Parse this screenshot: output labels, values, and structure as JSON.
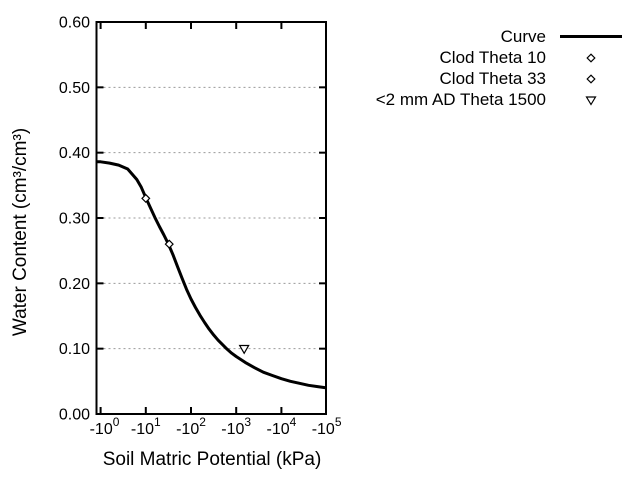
{
  "chart_data": {
    "type": "line",
    "title": "",
    "xlabel": "Soil Matric Potential (kPa)",
    "ylabel": "Water Content (cm³/cm³)",
    "background": "#ffffff",
    "axis_color": "#000000",
    "grid_color": "#999999",
    "x_axis": {
      "scale": "log10-of-negative-kPa",
      "tick_base": "-10",
      "tick_exponents": [
        "0",
        "1",
        "2",
        "3",
        "4",
        "5"
      ],
      "range_log10": [
        0,
        5
      ],
      "grid": false
    },
    "y_axis": {
      "tick_labels": [
        "0.00",
        "0.10",
        "0.20",
        "0.30",
        "0.40",
        "0.50",
        "0.60"
      ],
      "tick_values": [
        0.0,
        0.1,
        0.2,
        0.3,
        0.4,
        0.5,
        0.6
      ],
      "range": [
        0.0,
        0.6
      ],
      "grid": "dotted horizontal at 0.10-0.50"
    },
    "legend": {
      "position": "top-right-outside"
    },
    "series": [
      {
        "name": "Curve",
        "kind": "line",
        "color": "#000000",
        "points_log10x_y": [
          [
            -0.09,
            0.386
          ],
          [
            0.0,
            0.386
          ],
          [
            0.2,
            0.384
          ],
          [
            0.4,
            0.381
          ],
          [
            0.6,
            0.375
          ],
          [
            0.8,
            0.359
          ],
          [
            0.9,
            0.347
          ],
          [
            1.0,
            0.331
          ],
          [
            1.1,
            0.316
          ],
          [
            1.2,
            0.301
          ],
          [
            1.3,
            0.287
          ],
          [
            1.4,
            0.274
          ],
          [
            1.5,
            0.26
          ],
          [
            1.6,
            0.244
          ],
          [
            1.7,
            0.226
          ],
          [
            1.8,
            0.208
          ],
          [
            1.9,
            0.191
          ],
          [
            2.0,
            0.176
          ],
          [
            2.1,
            0.163
          ],
          [
            2.2,
            0.151
          ],
          [
            2.3,
            0.14
          ],
          [
            2.4,
            0.13
          ],
          [
            2.5,
            0.121
          ],
          [
            2.6,
            0.113
          ],
          [
            2.7,
            0.106
          ],
          [
            2.8,
            0.099
          ],
          [
            2.9,
            0.093
          ],
          [
            3.0,
            0.088
          ],
          [
            3.2,
            0.079
          ],
          [
            3.4,
            0.071
          ],
          [
            3.6,
            0.064
          ],
          [
            3.8,
            0.059
          ],
          [
            4.0,
            0.054
          ],
          [
            4.2,
            0.05
          ],
          [
            4.4,
            0.047
          ],
          [
            4.6,
            0.044
          ],
          [
            4.8,
            0.042
          ],
          [
            5.0,
            0.04
          ]
        ]
      },
      {
        "name": "Clod Theta 10",
        "kind": "scatter",
        "marker": "diamond-open",
        "color": "#000000",
        "points_kpa_theta": [
          [
            -10,
            0.33
          ]
        ]
      },
      {
        "name": "Clod Theta 33",
        "kind": "scatter",
        "marker": "diamond-open",
        "color": "#000000",
        "points_kpa_theta": [
          [
            -33,
            0.26
          ]
        ]
      },
      {
        "name": "<2 mm AD Theta 1500",
        "kind": "scatter",
        "marker": "triangle-down-open",
        "color": "#000000",
        "points_kpa_theta": [
          [
            -1500,
            0.1
          ]
        ]
      }
    ]
  }
}
